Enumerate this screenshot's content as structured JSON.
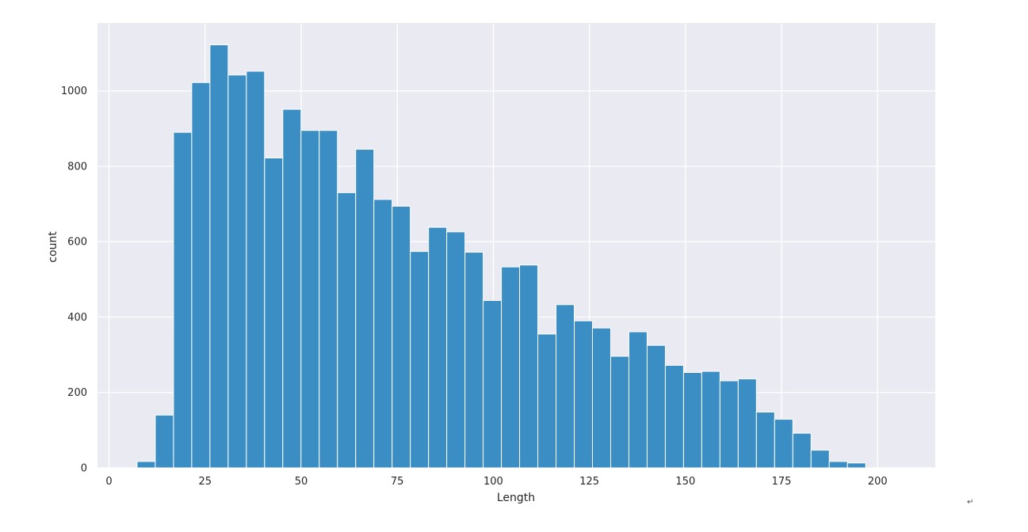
{
  "chart_data": {
    "type": "bar",
    "xlabel": "Length",
    "ylabel": "count",
    "xlim": [
      -3,
      215
    ],
    "ylim": [
      0,
      1180
    ],
    "x_ticks": [
      0,
      25,
      50,
      75,
      100,
      125,
      150,
      175,
      200
    ],
    "y_ticks": [
      0,
      200,
      400,
      600,
      800,
      1000
    ],
    "bin_width": 4.74,
    "bin_edges_start": 7.3,
    "values": [
      17,
      140,
      890,
      1022,
      1122,
      1042,
      1052,
      822,
      951,
      895,
      895,
      730,
      845,
      712,
      694,
      574,
      638,
      626,
      572,
      444,
      533,
      538,
      355,
      433,
      390,
      371,
      296,
      361,
      325,
      272,
      253,
      256,
      231,
      236,
      148,
      129,
      92,
      47,
      17,
      13
    ],
    "grid": true,
    "colors": {
      "bar": "#3a8ec4",
      "bar_edge": "#ffffff",
      "plot_background": "#eaeaf2",
      "grid": "#ffffff",
      "text": "#262626"
    }
  },
  "page": {
    "corner_mark": "↵"
  }
}
